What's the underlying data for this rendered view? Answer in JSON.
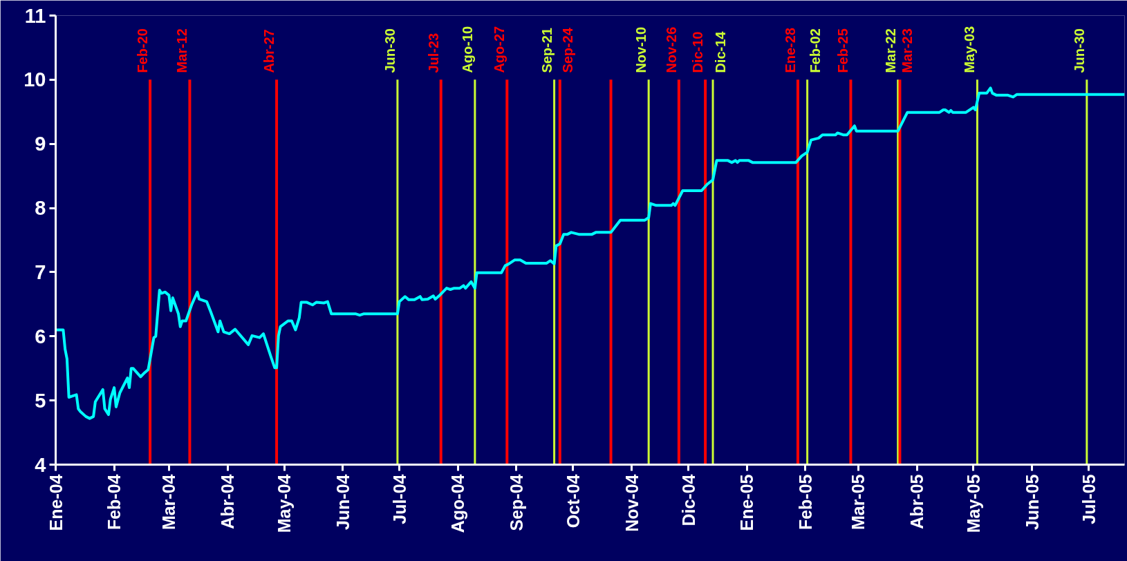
{
  "chart_data": {
    "type": "line",
    "x": [
      "2004-01-01",
      "2004-01-05",
      "2004-01-06",
      "2004-01-07",
      "2004-01-08",
      "2004-01-10",
      "2004-01-12",
      "2004-01-13",
      "2004-01-14",
      "2004-01-17",
      "2004-01-19",
      "2004-01-21",
      "2004-01-22",
      "2004-01-26",
      "2004-01-27",
      "2004-01-29",
      "2004-01-30",
      "2004-02-01",
      "2004-02-02",
      "2004-02-04",
      "2004-02-08",
      "2004-02-09",
      "2004-02-10",
      "2004-02-11",
      "2004-02-15",
      "2004-02-17",
      "2004-02-19",
      "2004-02-22",
      "2004-02-23",
      "2004-02-25",
      "2004-02-26",
      "2004-02-28",
      "2004-03-01",
      "2004-03-02",
      "2004-03-03",
      "2004-03-06",
      "2004-03-07",
      "2004-03-08",
      "2004-03-10",
      "2004-03-13",
      "2004-03-16",
      "2004-03-17",
      "2004-03-21",
      "2004-03-23",
      "2004-03-27",
      "2004-03-28",
      "2004-03-30",
      "2004-04-02",
      "2004-04-05",
      "2004-04-12",
      "2004-04-14",
      "2004-04-18",
      "2004-04-20",
      "2004-04-24",
      "2004-04-26",
      "2004-04-27",
      "2004-04-28",
      "2004-04-29",
      "2004-05-03",
      "2004-05-05",
      "2004-05-07",
      "2004-05-09",
      "2004-05-10",
      "2004-05-13",
      "2004-05-16",
      "2004-05-18",
      "2004-05-22",
      "2004-05-24",
      "2004-05-26",
      "2004-06-08",
      "2004-06-10",
      "2004-06-12",
      "2004-06-30",
      "2004-07-01",
      "2004-07-04",
      "2004-07-06",
      "2004-07-09",
      "2004-07-12",
      "2004-07-13",
      "2004-07-16",
      "2004-07-19",
      "2004-07-20",
      "2004-07-22",
      "2004-07-26",
      "2004-07-28",
      "2004-07-30",
      "2004-08-02",
      "2004-08-04",
      "2004-08-05",
      "2004-08-08",
      "2004-08-10",
      "2004-08-11",
      "2004-08-24",
      "2004-08-26",
      "2004-08-28",
      "2004-08-31",
      "2004-09-03",
      "2004-09-06",
      "2004-09-17",
      "2004-09-19",
      "2004-09-21",
      "2004-09-22",
      "2004-09-24",
      "2004-09-26",
      "2004-09-28",
      "2004-09-30",
      "2004-10-04",
      "2004-10-11",
      "2004-10-13",
      "2004-10-21",
      "2004-10-26",
      "2004-11-08",
      "2004-11-10",
      "2004-11-11",
      "2004-11-14",
      "2004-11-22",
      "2004-11-23",
      "2004-11-24",
      "2004-11-28",
      "2004-12-08",
      "2004-12-11",
      "2004-12-14",
      "2004-12-16",
      "2004-12-22",
      "2004-12-24",
      "2004-12-26",
      "2004-12-27",
      "2004-12-28",
      "2005-01-02",
      "2005-01-04",
      "2005-01-27",
      "2005-01-30",
      "2005-02-01",
      "2005-02-02",
      "2005-02-04",
      "2005-02-08",
      "2005-02-10",
      "2005-02-17",
      "2005-02-18",
      "2005-02-21",
      "2005-02-23",
      "2005-02-27",
      "2005-02-28",
      "2005-03-22",
      "2005-03-27",
      "2005-04-13",
      "2005-04-15",
      "2005-04-16",
      "2005-04-18",
      "2005-04-19",
      "2005-04-20",
      "2005-04-27",
      "2005-05-01",
      "2005-05-02",
      "2005-05-04",
      "2005-05-08",
      "2005-05-10",
      "2005-05-11",
      "2005-05-13",
      "2005-05-19",
      "2005-05-22",
      "2005-05-24",
      "2005-07-20"
    ],
    "series": [
      {
        "color": "#00ffff",
        "values": [
          6.1,
          6.1,
          5.8,
          5.65,
          5.05,
          5.07,
          5.09,
          4.87,
          4.83,
          4.75,
          4.72,
          4.75,
          4.98,
          5.17,
          4.87,
          4.78,
          5.02,
          5.2,
          4.9,
          5.12,
          5.35,
          5.2,
          5.5,
          5.5,
          5.37,
          5.43,
          5.48,
          5.98,
          6.0,
          6.72,
          6.67,
          6.69,
          6.64,
          6.4,
          6.6,
          6.35,
          6.15,
          6.24,
          6.24,
          6.49,
          6.69,
          6.58,
          6.54,
          6.39,
          6.07,
          6.24,
          6.07,
          6.04,
          6.11,
          5.87,
          6.01,
          5.98,
          6.04,
          5.68,
          5.51,
          5.51,
          6.01,
          6.15,
          6.24,
          6.24,
          6.1,
          6.29,
          6.53,
          6.53,
          6.49,
          6.53,
          6.52,
          6.54,
          6.35,
          6.35,
          6.33,
          6.35,
          6.35,
          6.54,
          6.62,
          6.57,
          6.57,
          6.62,
          6.57,
          6.58,
          6.63,
          6.58,
          6.63,
          6.75,
          6.73,
          6.75,
          6.75,
          6.79,
          6.75,
          6.85,
          6.75,
          6.99,
          6.99,
          7.1,
          7.13,
          7.19,
          7.19,
          7.14,
          7.14,
          7.18,
          7.13,
          7.41,
          7.44,
          7.59,
          7.59,
          7.62,
          7.59,
          7.59,
          7.62,
          7.62,
          7.81,
          7.81,
          7.85,
          8.07,
          8.04,
          8.04,
          8.07,
          8.04,
          8.27,
          8.27,
          8.37,
          8.44,
          8.74,
          8.74,
          8.71,
          8.74,
          8.71,
          8.74,
          8.74,
          8.71,
          8.71,
          8.81,
          8.85,
          8.87,
          9.06,
          9.09,
          9.14,
          9.14,
          9.17,
          9.14,
          9.14,
          9.28,
          9.2,
          9.2,
          9.49,
          9.49,
          9.53,
          9.53,
          9.49,
          9.52,
          9.49,
          9.49,
          9.57,
          9.53,
          9.79,
          9.79,
          9.87,
          9.79,
          9.76,
          9.76,
          9.73,
          9.77,
          9.77
        ]
      }
    ],
    "xlim": [
      "2004-01-01",
      "2005-07-20"
    ],
    "xticks": [
      {
        "value": "2004-01-01",
        "label": "Ene-04"
      },
      {
        "value": "2004-02-01",
        "label": "Feb-04"
      },
      {
        "value": "2004-03-01",
        "label": "Mar-04"
      },
      {
        "value": "2004-04-01",
        "label": "Abr-04"
      },
      {
        "value": "2004-05-01",
        "label": "May-04"
      },
      {
        "value": "2004-06-01",
        "label": "Jun-04"
      },
      {
        "value": "2004-07-01",
        "label": "Jul-04"
      },
      {
        "value": "2004-08-01",
        "label": "Ago-04"
      },
      {
        "value": "2004-09-01",
        "label": "Sep-04"
      },
      {
        "value": "2004-10-01",
        "label": "Oct-04"
      },
      {
        "value": "2004-11-01",
        "label": "Nov-04"
      },
      {
        "value": "2004-12-01",
        "label": "Dic-04"
      },
      {
        "value": "2005-01-01",
        "label": "Ene-05"
      },
      {
        "value": "2005-02-01",
        "label": "Feb-05"
      },
      {
        "value": "2005-03-01",
        "label": "Mar-05"
      },
      {
        "value": "2005-04-01",
        "label": "Abr-05"
      },
      {
        "value": "2005-05-01",
        "label": "May-05"
      },
      {
        "value": "2005-06-01",
        "label": "Jun-05"
      },
      {
        "value": "2005-07-01",
        "label": "Jul-05"
      }
    ],
    "ylim": [
      4,
      11
    ],
    "yticks": [
      4,
      5,
      6,
      7,
      8,
      9,
      10,
      11
    ],
    "grid": false,
    "marker": "none",
    "line_style": "solid",
    "ref_lines": [
      {
        "axis": "x",
        "value": "2004-02-20",
        "label": "Feb-20",
        "color": "#ff0000"
      },
      {
        "axis": "x",
        "value": "2004-03-12",
        "label": "Mar-12",
        "color": "#ff0000"
      },
      {
        "axis": "x",
        "value": "2004-04-27",
        "label": "Abr-27",
        "color": "#ff0000"
      },
      {
        "axis": "x",
        "value": "2004-06-30",
        "label": "Jun-30",
        "color": "#ccff33"
      },
      {
        "axis": "x",
        "value": "2004-07-23",
        "label": "Jul-23",
        "color": "#ff0000"
      },
      {
        "axis": "x",
        "value": "2004-08-10",
        "label": "Ago-10",
        "color": "#ccff33"
      },
      {
        "axis": "x",
        "value": "2004-08-27",
        "label": "Ago-27",
        "color": "#ff0000"
      },
      {
        "axis": "x",
        "value": "2004-09-21",
        "label": "Sep-21",
        "color": "#ccff33"
      },
      {
        "axis": "x",
        "value": "2004-09-24",
        "label": "Sep-24",
        "color": "#ff0000"
      },
      {
        "axis": "x",
        "value": "2004-10-21",
        "label": null,
        "color": "#ff0000"
      },
      {
        "axis": "x",
        "value": "2004-11-10",
        "label": "Nov-10",
        "color": "#ccff33"
      },
      {
        "axis": "x",
        "value": "2004-11-26",
        "label": "Nov-26",
        "color": "#ff0000"
      },
      {
        "axis": "x",
        "value": "2004-12-10",
        "label": "Dic-10",
        "color": "#ff0000"
      },
      {
        "axis": "x",
        "value": "2004-12-14",
        "label": "Dic-14",
        "color": "#ccff33"
      },
      {
        "axis": "x",
        "value": "2005-01-28",
        "label": "Ene-28",
        "color": "#ff0000"
      },
      {
        "axis": "x",
        "value": "2005-02-02",
        "label": "Feb-02",
        "color": "#ccff33"
      },
      {
        "axis": "x",
        "value": "2005-02-25",
        "label": "Feb-25",
        "color": "#ff0000"
      },
      {
        "axis": "x",
        "value": "2005-03-22",
        "label": "Mar-22",
        "color": "#ccff33"
      },
      {
        "axis": "x",
        "value": "2005-03-23",
        "label": "Mar-23",
        "color": "#ff0000"
      },
      {
        "axis": "x",
        "value": "2005-05-03",
        "label": "May-03",
        "color": "#ccff33"
      },
      {
        "axis": "x",
        "value": "2005-06-30",
        "label": "Jun-30",
        "color": "#ccff33"
      }
    ]
  }
}
